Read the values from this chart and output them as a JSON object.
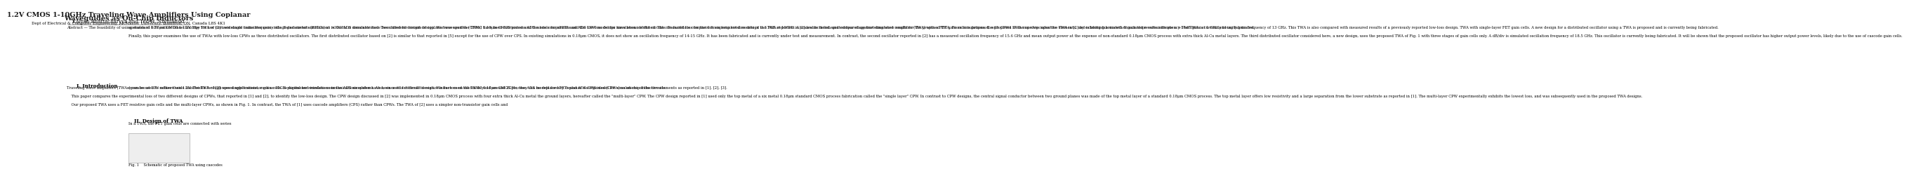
{
  "title_line1": "1.2V CMOS 1-10GHz Traveling Wave Amplifiers Using Coplanar",
  "title_line2": "Waveguides as On-Chip Inductors",
  "authors": "Kalyan Bhattacharyya and Ted H. Szymanski",
  "affiliation": "Dept of Electrical & Computer Engineering, McMaster University, Hamilton, ON, Canada L8S 4K1",
  "bg_color": "#ffffff",
  "text_color": "#000000",
  "title_color": "#1a1a1a"
}
